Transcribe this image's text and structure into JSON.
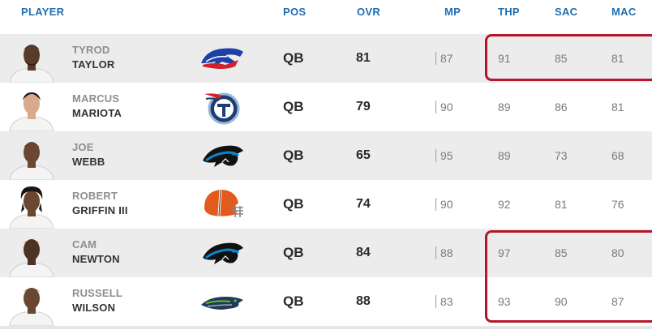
{
  "header": {
    "player": "PLAYER",
    "pos": "POS",
    "ovr": "OVR",
    "mp": "MP",
    "thp": "THP",
    "sac": "SAC",
    "mac": "MAC"
  },
  "rows": [
    {
      "first": "TYROD",
      "last": "TAYLOR",
      "team_icon": "bills-logo-icon",
      "pos": "QB",
      "ovr": "81",
      "mp": "87",
      "thp": "91",
      "sac": "85",
      "mac": "81"
    },
    {
      "first": "MARCUS",
      "last": "MARIOTA",
      "team_icon": "titans-logo-icon",
      "pos": "QB",
      "ovr": "79",
      "mp": "90",
      "thp": "89",
      "sac": "86",
      "mac": "81"
    },
    {
      "first": "JOE",
      "last": "WEBB",
      "team_icon": "panthers-logo-icon",
      "pos": "QB",
      "ovr": "65",
      "mp": "95",
      "thp": "89",
      "sac": "73",
      "mac": "68"
    },
    {
      "first": "ROBERT",
      "last": "GRIFFIN III",
      "team_icon": "browns-logo-icon",
      "pos": "QB",
      "ovr": "74",
      "mp": "90",
      "thp": "92",
      "sac": "81",
      "mac": "76"
    },
    {
      "first": "CAM",
      "last": "NEWTON",
      "team_icon": "panthers-logo-icon",
      "pos": "QB",
      "ovr": "84",
      "mp": "88",
      "thp": "97",
      "sac": "85",
      "mac": "80"
    },
    {
      "first": "RUSSELL",
      "last": "WILSON",
      "team_icon": "seahawks-logo-icon",
      "pos": "QB",
      "ovr": "88",
      "mp": "83",
      "thp": "93",
      "sac": "90",
      "mac": "87"
    }
  ],
  "colors": {
    "header_blue": "#1f6fb2",
    "highlight_red": "#b5172a",
    "row_shade": "#ececec"
  }
}
